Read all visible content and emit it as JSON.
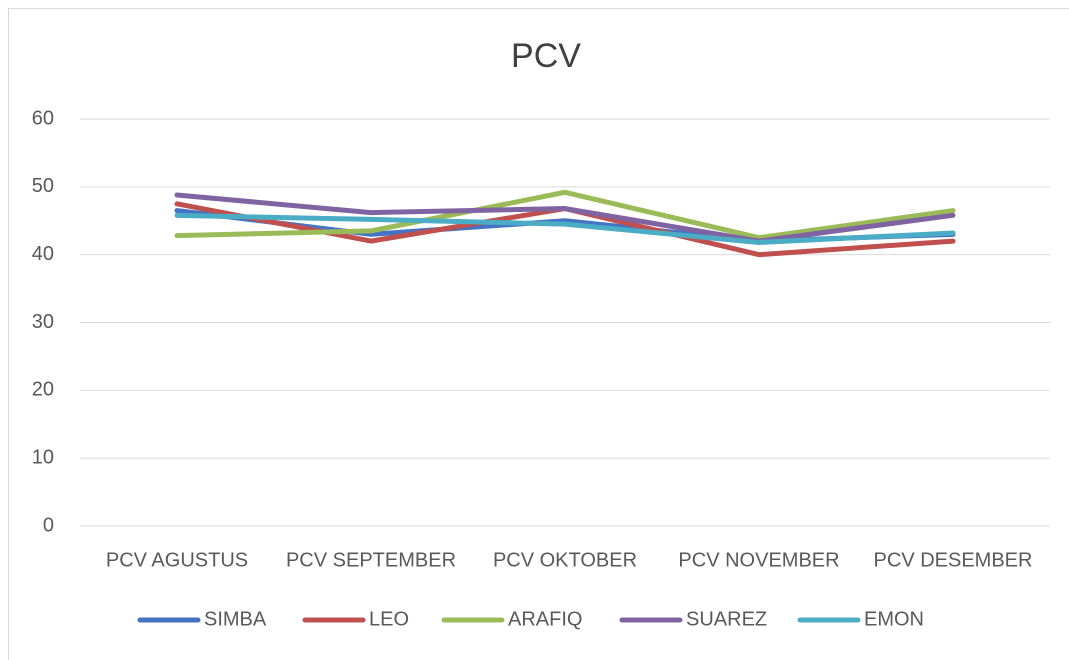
{
  "chart_data": {
    "type": "line",
    "title": "PCV",
    "categories": [
      "PCV AGUSTUS",
      "PCV SEPTEMBER",
      "PCV OKTOBER",
      "PCV NOVEMBER",
      "PCV DESEMBER"
    ],
    "series": [
      {
        "name": "SIMBA",
        "color": "#4472c4",
        "values": [
          46.5,
          43,
          45,
          42,
          43
        ]
      },
      {
        "name": "LEO",
        "color": "#c0504d",
        "values": [
          47.5,
          42,
          46.8,
          40,
          42
        ]
      },
      {
        "name": "ARAFIQ",
        "color": "#9bbb59",
        "values": [
          42.8,
          43.5,
          49.2,
          42.5,
          46.5
        ]
      },
      {
        "name": "SUAREZ",
        "color": "#8064a2",
        "values": [
          48.8,
          46.2,
          46.8,
          42,
          45.8
        ]
      },
      {
        "name": "EMON",
        "color": "#4bacc6",
        "values": [
          45.8,
          45.2,
          44.5,
          41.8,
          43.2
        ]
      }
    ],
    "ylim": [
      0,
      60
    ],
    "yticks": [
      0,
      10,
      20,
      30,
      40,
      50,
      60
    ],
    "grid": true,
    "legend": "bottom"
  }
}
